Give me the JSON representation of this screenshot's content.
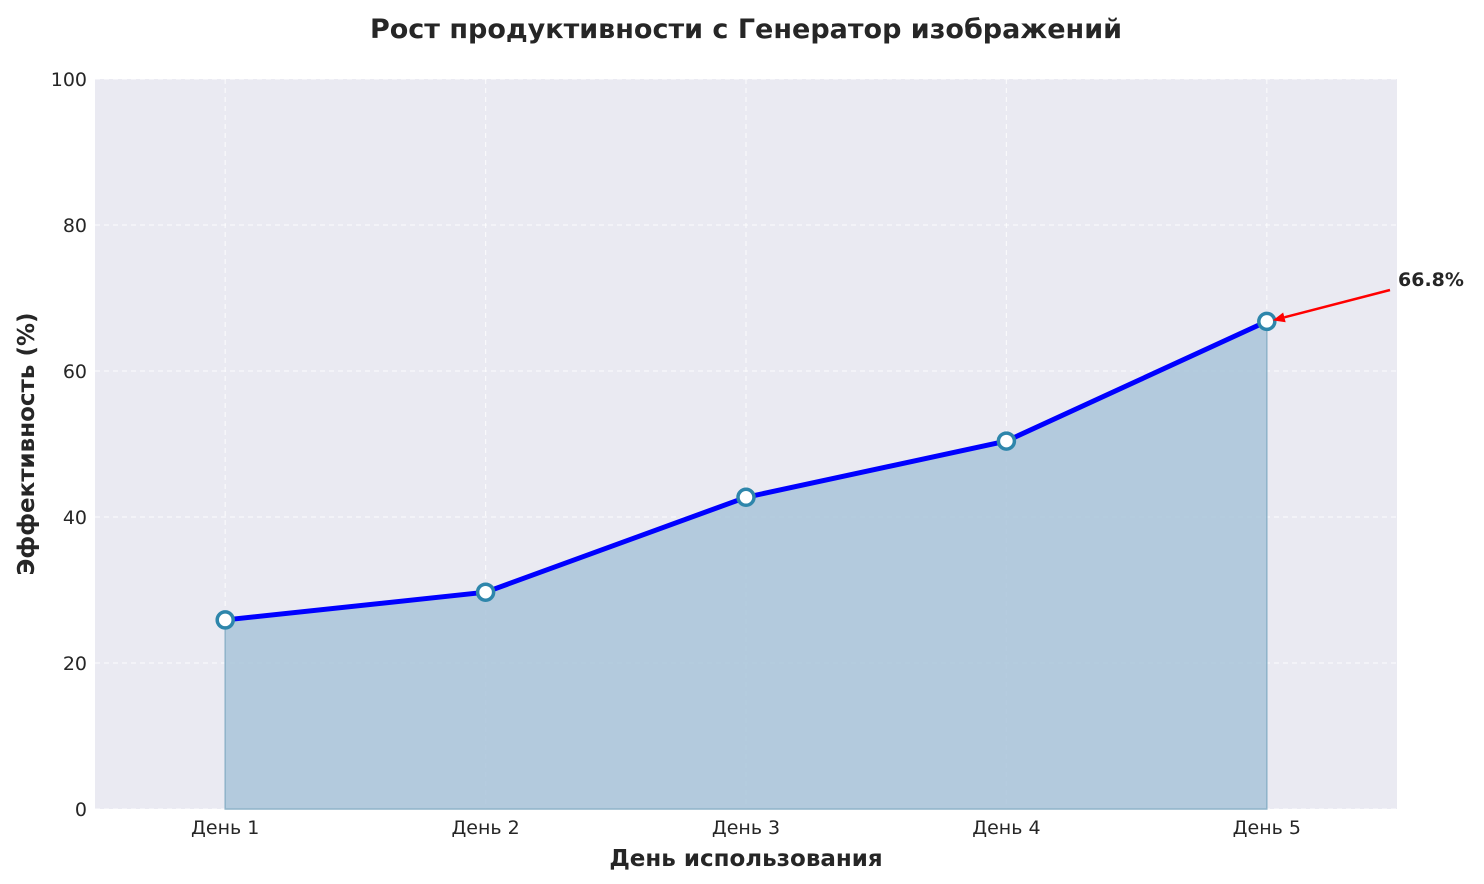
{
  "chart_data": {
    "type": "area",
    "title": "Рост продуктивности с Генератор изображений",
    "xlabel": "День использования",
    "ylabel": "Эффективность (%)",
    "categories": [
      "День 1",
      "День 2",
      "День 3",
      "День 4",
      "День 5"
    ],
    "values": [
      25.9,
      29.7,
      42.7,
      50.4,
      66.8
    ],
    "ylim": [
      0,
      100
    ],
    "yticks": [
      0,
      20,
      40,
      60,
      80,
      100
    ],
    "grid": true,
    "annotation": {
      "text": "66.8%",
      "target_index": 4,
      "arrow_color": "#ff0000"
    },
    "colors": {
      "line": "#0000ff",
      "fill": "#a9c4d9",
      "marker_edge": "#2e86ab",
      "marker_face": "#ffffff",
      "background": "#eaeaf2"
    }
  }
}
